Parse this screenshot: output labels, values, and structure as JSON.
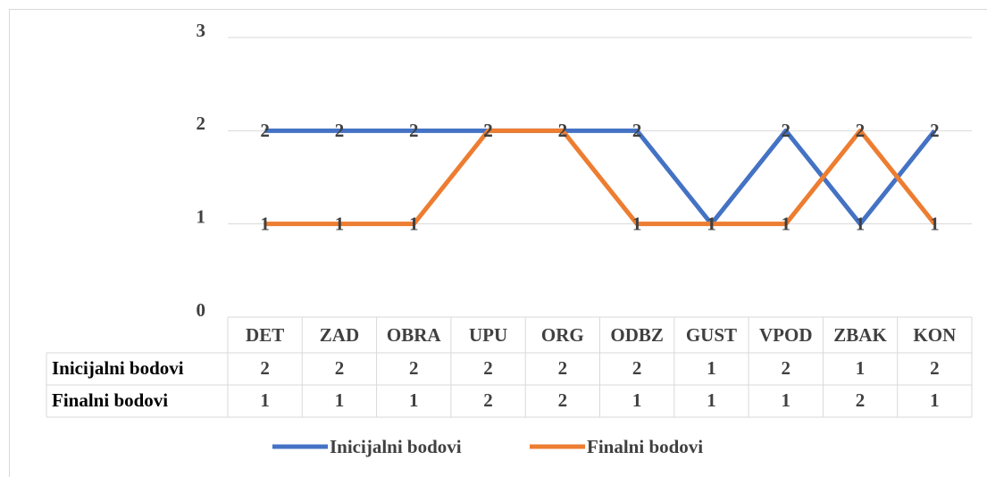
{
  "chart_data": {
    "type": "line",
    "categories": [
      "DET",
      "ZAD",
      "OBRA",
      "UPU",
      "ORG",
      "ODBZ",
      "GUST",
      "VPOD",
      "ZBAK",
      "KON"
    ],
    "series": [
      {
        "name": "Inicijalni bodovi",
        "color": "#4472c4",
        "values": [
          2,
          2,
          2,
          2,
          2,
          2,
          1,
          2,
          1,
          2
        ]
      },
      {
        "name": "Finalni bodovi",
        "color": "#ed7d31",
        "values": [
          1,
          1,
          1,
          2,
          2,
          1,
          1,
          1,
          2,
          1
        ]
      }
    ],
    "ylim": [
      0,
      3
    ],
    "yticks": [
      0,
      1,
      2,
      3
    ],
    "grid": true,
    "legend": "bottom",
    "data_table": true
  }
}
